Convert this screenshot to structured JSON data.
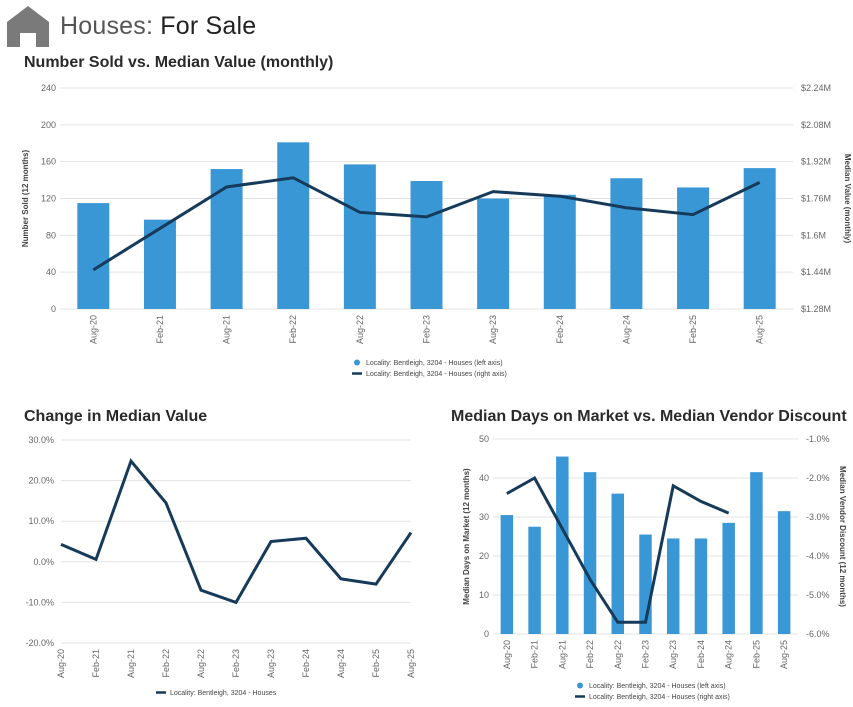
{
  "header": {
    "title_light": "Houses:",
    "title_strong": "For Sale"
  },
  "colors": {
    "bar": "#3a97d6",
    "line": "#163a5a",
    "grid": "#e3e3e3"
  },
  "chart_data": [
    {
      "type": "bar+line",
      "title": "Number Sold vs. Median Value (monthly)",
      "categories": [
        "Aug-20",
        "Feb-21",
        "Aug-21",
        "Feb-22",
        "Aug-22",
        "Feb-23",
        "Aug-23",
        "Feb-24",
        "Aug-24",
        "Feb-25",
        "Aug-25"
      ],
      "series": [
        {
          "name": "Locality: Bentleigh, 3204 - Houses (left axis)",
          "kind": "bar",
          "axis": "left",
          "values": [
            115,
            97,
            152,
            181,
            157,
            139,
            120,
            124,
            142,
            132,
            153
          ]
        },
        {
          "name": "Locality: Bentleigh, 3204 - Houses (right axis)",
          "kind": "line",
          "axis": "right",
          "values": [
            1450000,
            1630000,
            1810000,
            1850000,
            1700000,
            1680000,
            1790000,
            1770000,
            1720000,
            1690000,
            1830000
          ]
        }
      ],
      "ylabel": "Number Sold (12 months)",
      "y2label": "Median Value (monthly)",
      "ylim": [
        0,
        240
      ],
      "yticks": [
        0,
        40,
        80,
        120,
        160,
        200,
        240
      ],
      "y2lim": [
        1280000,
        2240000
      ],
      "y2ticks": [
        "$1.28M",
        "$1.44M",
        "$1.6M",
        "$1.76M",
        "$1.92M",
        "$2.08M",
        "$2.24M"
      ],
      "legend": "bottom"
    },
    {
      "type": "line",
      "title": "Change in Median Value",
      "categories": [
        "Aug-20",
        "Feb-21",
        "Aug-21",
        "Feb-22",
        "Aug-22",
        "Feb-23",
        "Aug-23",
        "Feb-24",
        "Aug-24",
        "Feb-25",
        "Aug-25"
      ],
      "series": [
        {
          "name": "Locality: Bentleigh, 3204 - Houses",
          "values": [
            4.3,
            0.6,
            24.8,
            14.5,
            -7.0,
            -10.0,
            5.0,
            5.8,
            -4.2,
            -5.5,
            7.2
          ]
        }
      ],
      "ylim": [
        -20,
        30
      ],
      "yticks": [
        "-20.0%",
        "-10.0%",
        "0.0%",
        "10.0%",
        "20.0%",
        "30.0%"
      ],
      "legend": "bottom"
    },
    {
      "type": "bar+line",
      "title": "Median Days on Market vs. Median Vendor Discount",
      "categories": [
        "Aug-20",
        "Feb-21",
        "Aug-21",
        "Feb-22",
        "Aug-22",
        "Feb-23",
        "Aug-23",
        "Feb-24",
        "Aug-24",
        "Feb-25",
        "Aug-25"
      ],
      "series": [
        {
          "name": "Locality: Bentleigh, 3204 - Houses (left axis)",
          "kind": "bar",
          "axis": "left",
          "values": [
            30.5,
            27.5,
            45.5,
            41.5,
            36,
            25.5,
            24.5,
            24.5,
            28.5,
            41.5,
            31.5
          ]
        },
        {
          "name": "Locality: Bentleigh, 3204 - Houses (right axis)",
          "kind": "line",
          "axis": "right",
          "values": [
            -2.4,
            -2.0,
            -3.3,
            -4.6,
            -5.7,
            -5.7,
            -2.2,
            -2.6,
            -2.9,
            null,
            null
          ]
        }
      ],
      "ylabel": "Median Days on Market (12 months)",
      "y2label": "Median Vendor Discount (12 months)",
      "ylim": [
        0,
        50
      ],
      "yticks": [
        0,
        10,
        20,
        30,
        40,
        50
      ],
      "y2lim": [
        -6,
        -1
      ],
      "y2ticks": [
        "-6.0%",
        "-5.0%",
        "-4.0%",
        "-3.0%",
        "-2.0%",
        "-1.0%"
      ],
      "legend": "bottom"
    }
  ]
}
